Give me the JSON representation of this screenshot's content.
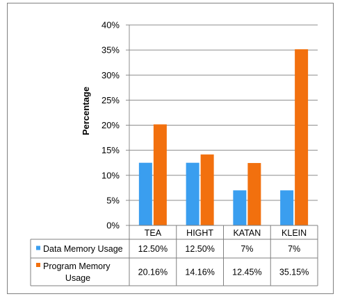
{
  "chart_data": {
    "type": "bar",
    "ylabel": "Percentage",
    "xlabel": "",
    "title": "",
    "ylim": [
      0,
      40
    ],
    "yticks": [
      0,
      5,
      10,
      15,
      20,
      25,
      30,
      35,
      40
    ],
    "ytick_labels": [
      "0%",
      "5%",
      "10%",
      "15%",
      "20%",
      "25%",
      "30%",
      "35%",
      "40%"
    ],
    "categories": [
      "TEA",
      "HIGHT",
      "KATAN",
      "KLEIN"
    ],
    "series": [
      {
        "name": "Data Memory Usage",
        "color": "#3a9eef",
        "values": [
          12.5,
          12.5,
          7,
          7
        ],
        "table_labels": [
          "12.50%",
          "12.50%",
          "7%",
          "7%"
        ]
      },
      {
        "name": "Program Memory Usage",
        "name_lines": [
          "Program Memory",
          "Usage"
        ],
        "color": "#f2700e",
        "values": [
          20.16,
          14.16,
          12.45,
          35.15
        ],
        "table_labels": [
          "20.16%",
          "14.16%",
          "12.45%",
          "35.15%"
        ]
      }
    ],
    "grid": true,
    "legend": "data-table"
  }
}
